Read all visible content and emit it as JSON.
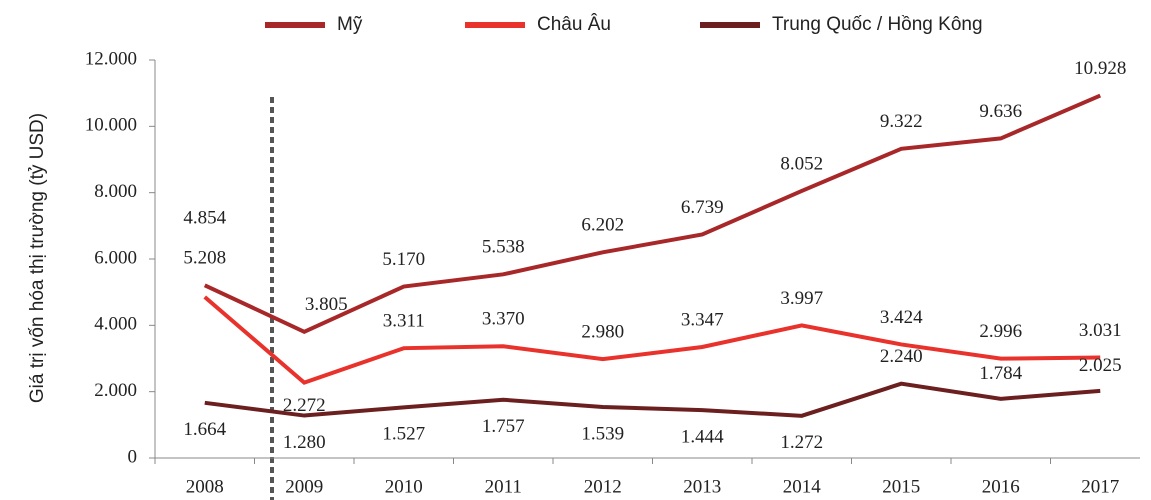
{
  "chart_data": {
    "type": "line",
    "y_label": "Giá trị vốn hóa thị trường (tỷ USD)",
    "categories": [
      "2008",
      "2009",
      "2010",
      "2011",
      "2012",
      "2013",
      "2014",
      "2015",
      "2016",
      "2017"
    ],
    "series": [
      {
        "name": "Mỹ",
        "color": "#a8282a",
        "values": [
          5208,
          3805,
          5170,
          5538,
          6202,
          6739,
          8052,
          9322,
          9636,
          10928
        ],
        "value_labels": [
          "5.208",
          "3.805",
          "5.170",
          "5.538",
          "6.202",
          "6.739",
          "8.052",
          "9.322",
          "9.636",
          "10.928"
        ]
      },
      {
        "name": "Châu Âu",
        "color": "#e8322b",
        "values": [
          4854,
          2272,
          3311,
          3370,
          2980,
          3347,
          3997,
          3424,
          2996,
          3031
        ],
        "value_labels": [
          "4.854",
          "2.272",
          "3.311",
          "3.370",
          "2.980",
          "3.347",
          "3.997",
          "3.424",
          "2.996",
          "3.031"
        ]
      },
      {
        "name": "Trung Quốc / Hồng Kông",
        "color": "#6b1f1f",
        "values": [
          1664,
          1280,
          1527,
          1757,
          1539,
          1444,
          1272,
          2240,
          1784,
          2025
        ],
        "value_labels": [
          "1.664",
          "1.280",
          "1.527",
          "1.757",
          "1.539",
          "1.444",
          "1.272",
          "2.240",
          "1.784",
          "2.025"
        ]
      }
    ],
    "ylim": [
      0,
      12000
    ],
    "yticks": [
      0,
      {
        "value": 2000,
        "label": "2.000"
      },
      {
        "value": 4000,
        "label": "4.000"
      },
      {
        "value": 6000,
        "label": "6.000"
      },
      {
        "value": 8000,
        "label": "8.000"
      },
      {
        "value": 10000,
        "label": "10.000"
      },
      {
        "value": 12000,
        "label": "12.000"
      }
    ],
    "legend": "top",
    "grid": false
  }
}
